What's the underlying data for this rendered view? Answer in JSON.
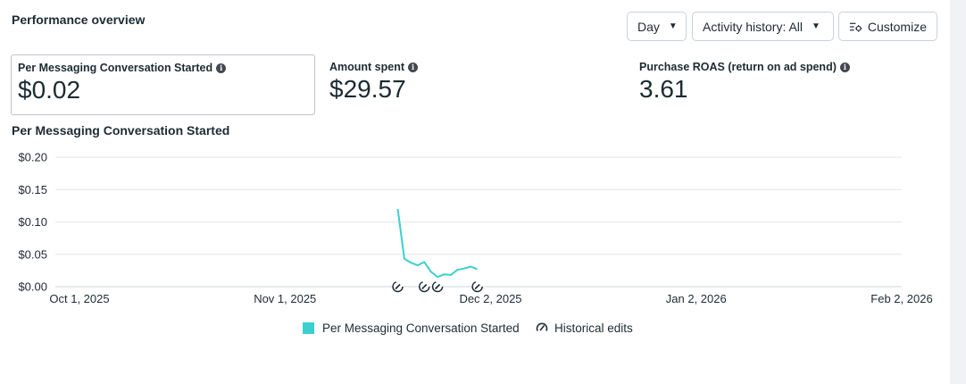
{
  "panel": {
    "title": "Performance overview"
  },
  "controls": {
    "day_label": "Day",
    "activity_label": "Activity history: All",
    "customize_label": "Customize"
  },
  "metrics": [
    {
      "label": "Per Messaging Conversation Started",
      "value": "$0.02"
    },
    {
      "label": "Amount spent",
      "value": "$29.57"
    },
    {
      "label": "Purchase ROAS (return on ad spend)",
      "value": "3.61"
    }
  ],
  "chart_data": {
    "type": "line",
    "title": "Per Messaging Conversation Started",
    "ylim": [
      0,
      0.2
    ],
    "y_ticks": [
      {
        "value": 0.2,
        "label": "$0.20"
      },
      {
        "value": 0.15,
        "label": "$0.15"
      },
      {
        "value": 0.1,
        "label": "$0.10"
      },
      {
        "value": 0.05,
        "label": "$0.05"
      },
      {
        "value": 0.0,
        "label": "$0.00"
      }
    ],
    "x_ticks": [
      {
        "date": "2025-10-01",
        "label": "Oct 1, 2025"
      },
      {
        "date": "2025-11-01",
        "label": "Nov 1, 2025"
      },
      {
        "date": "2025-12-02",
        "label": "Dec 2, 2025"
      },
      {
        "date": "2026-01-02",
        "label": "Jan 2, 2026"
      },
      {
        "date": "2026-02-02",
        "label": "Feb 2, 2026"
      }
    ],
    "xlim": [
      "2025-10-01",
      "2026-02-02"
    ],
    "grid": true,
    "legend_position": "bottom",
    "series": [
      {
        "name": "Per Messaging Conversation Started",
        "color": "#3bcfcf",
        "points": [
          {
            "x": "2025-11-18",
            "y": 0.12
          },
          {
            "x": "2025-11-19",
            "y": 0.043
          },
          {
            "x": "2025-11-20",
            "y": 0.037
          },
          {
            "x": "2025-11-21",
            "y": 0.033
          },
          {
            "x": "2025-11-22",
            "y": 0.038
          },
          {
            "x": "2025-11-23",
            "y": 0.023
          },
          {
            "x": "2025-11-24",
            "y": 0.015
          },
          {
            "x": "2025-11-25",
            "y": 0.019
          },
          {
            "x": "2025-11-26",
            "y": 0.018
          },
          {
            "x": "2025-11-27",
            "y": 0.026
          },
          {
            "x": "2025-11-28",
            "y": 0.028
          },
          {
            "x": "2025-11-29",
            "y": 0.031
          },
          {
            "x": "2025-11-30",
            "y": 0.027
          }
        ]
      }
    ],
    "historical_edits": [
      "2025-11-18",
      "2025-11-22",
      "2025-11-24",
      "2025-11-30"
    ]
  },
  "legend": [
    {
      "label": "Per Messaging Conversation Started",
      "color": "#3bcfcf",
      "icon": "swatch-icon"
    },
    {
      "label": "Historical edits",
      "icon": "historical-edits-icon"
    }
  ]
}
